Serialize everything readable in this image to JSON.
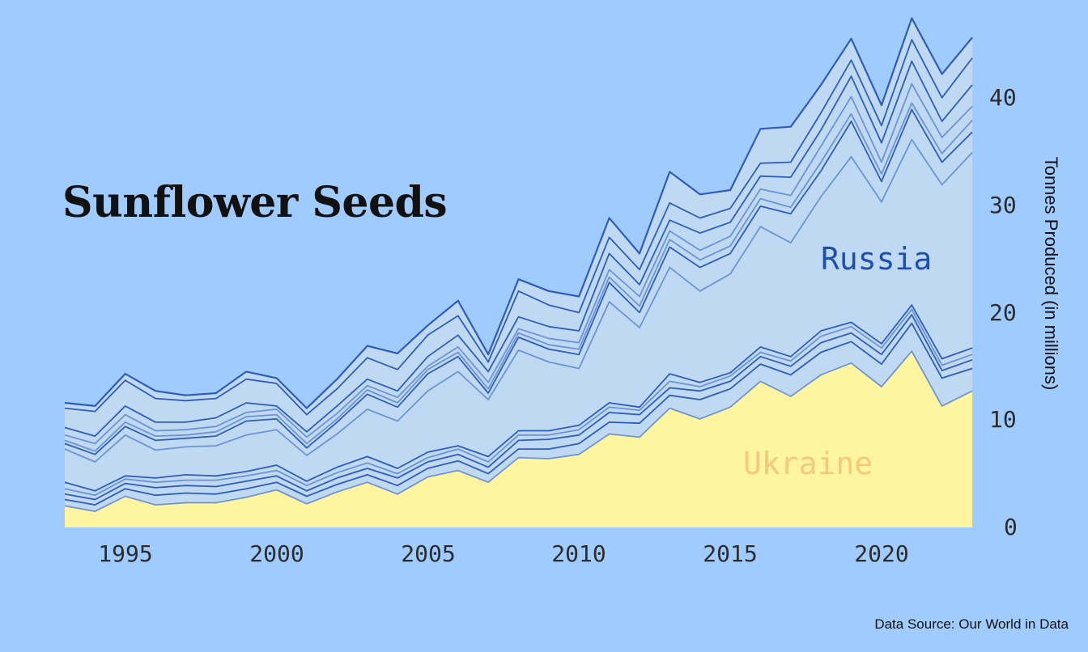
{
  "title": "Sunflower Seeds",
  "labels": {
    "russia": "Russia",
    "ukraine": "Ukraine"
  },
  "y_axis_title": "Tonnes Produced (in millions)",
  "source": "Data Source: Our World in Data",
  "colors": {
    "background": "#a0cbff",
    "russia_fill": "#c0d9f2",
    "ukraine_fill": "#fff5a0",
    "line_dark": "#1f4fb5",
    "line_light": "#5d86cf",
    "russia_label": "#1d4fb0",
    "ukraine_label": "#f5c97a"
  },
  "x_ticks": [
    "1995",
    "2000",
    "2005",
    "2010",
    "2015",
    "2020"
  ],
  "y_ticks": [
    "0",
    "10",
    "20",
    "30",
    "40"
  ],
  "chart_data": {
    "type": "area",
    "stacked": true,
    "title": "Sunflower Seeds",
    "xlabel": "",
    "ylabel": "Tonnes Produced (in millions)",
    "ylim": [
      0,
      48
    ],
    "xlim": [
      1993,
      2023
    ],
    "grid": false,
    "legend": "inline labels (Ukraine, Russia)",
    "x": [
      1993,
      1994,
      1995,
      1996,
      1997,
      1998,
      1999,
      2000,
      2001,
      2002,
      2003,
      2004,
      2005,
      2006,
      2007,
      2008,
      2009,
      2010,
      2011,
      2012,
      2013,
      2014,
      2015,
      2016,
      2017,
      2018,
      2019,
      2020,
      2021,
      2022,
      2023
    ],
    "cumulative_boundaries": [
      {
        "name": "Ukraine",
        "values": [
          2.0,
          1.5,
          2.9,
          2.1,
          2.3,
          2.3,
          2.8,
          3.5,
          2.2,
          3.3,
          4.2,
          3.1,
          4.7,
          5.3,
          4.2,
          6.5,
          6.4,
          6.8,
          8.7,
          8.4,
          11.1,
          10.1,
          11.2,
          13.6,
          12.2,
          14.2,
          15.3,
          13.1,
          16.4,
          11.3,
          12.7
        ]
      },
      {
        "name": "layer 2",
        "values": [
          2.6,
          2.1,
          3.6,
          3.0,
          3.2,
          3.1,
          3.6,
          4.2,
          2.9,
          4.0,
          4.9,
          3.9,
          5.5,
          6.2,
          5.0,
          7.3,
          7.3,
          7.8,
          9.8,
          9.7,
          12.3,
          11.9,
          12.9,
          15.2,
          14.2,
          16.3,
          17.3,
          15.2,
          19.0,
          13.9,
          14.8
        ]
      },
      {
        "name": "layer 3",
        "values": [
          3.1,
          2.6,
          4.1,
          3.7,
          3.9,
          3.8,
          4.3,
          4.8,
          3.4,
          4.6,
          5.5,
          4.6,
          6.1,
          6.8,
          5.6,
          8.1,
          8.2,
          8.6,
          10.7,
          10.5,
          13.0,
          12.7,
          13.6,
          15.9,
          15.0,
          17.2,
          18.1,
          16.1,
          19.8,
          14.6,
          15.6
        ]
      },
      {
        "name": "layer 4",
        "values": [
          3.6,
          3.0,
          4.5,
          4.2,
          4.4,
          4.4,
          4.8,
          5.3,
          3.9,
          5.1,
          6.0,
          5.0,
          6.5,
          7.3,
          6.1,
          8.6,
          8.6,
          9.1,
          11.2,
          10.9,
          13.6,
          13.1,
          14.1,
          16.3,
          15.5,
          17.8,
          18.7,
          16.7,
          20.3,
          15.1,
          16.1
        ]
      },
      {
        "name": "layer 5",
        "values": [
          4.2,
          3.4,
          4.8,
          4.6,
          4.9,
          4.8,
          5.2,
          5.8,
          4.3,
          5.6,
          6.6,
          5.5,
          7.0,
          7.6,
          6.6,
          9.0,
          9.0,
          9.5,
          11.6,
          11.2,
          14.3,
          13.5,
          14.4,
          16.8,
          15.9,
          18.3,
          19.1,
          17.1,
          20.7,
          15.7,
          16.7
        ]
      },
      {
        "name": "Russia",
        "values": [
          7.3,
          6.1,
          8.6,
          7.2,
          7.5,
          7.6,
          8.6,
          9.1,
          6.7,
          8.7,
          11.0,
          9.9,
          12.7,
          14.5,
          11.9,
          16.5,
          15.4,
          14.8,
          21.0,
          18.6,
          24.2,
          22.0,
          23.6,
          28.0,
          26.5,
          30.8,
          34.5,
          30.3,
          36.1,
          31.9,
          34.9
        ]
      },
      {
        "name": "layer 7",
        "values": [
          7.8,
          6.8,
          9.4,
          8.1,
          8.3,
          8.5,
          9.9,
          10.1,
          7.4,
          9.8,
          12.4,
          11.2,
          14.3,
          15.9,
          12.5,
          17.7,
          16.6,
          16.1,
          22.8,
          20.0,
          26.1,
          24.2,
          25.5,
          29.9,
          29.2,
          33.2,
          37.8,
          32.2,
          38.9,
          34.0,
          36.8
        ]
      },
      {
        "name": "layer 8",
        "values": [
          8.1,
          7.1,
          9.8,
          8.5,
          8.6,
          8.9,
          10.3,
          10.5,
          7.8,
          10.1,
          12.8,
          11.6,
          14.7,
          16.3,
          12.9,
          18.1,
          17.0,
          16.6,
          23.3,
          20.6,
          26.8,
          24.9,
          26.2,
          30.6,
          29.8,
          34.0,
          38.5,
          32.9,
          39.5,
          34.8,
          37.9
        ]
      },
      {
        "name": "layer 9",
        "values": [
          8.6,
          7.8,
          10.5,
          9.0,
          9.1,
          9.4,
          10.7,
          11.0,
          8.4,
          10.6,
          13.2,
          12.1,
          15.0,
          16.8,
          13.5,
          18.5,
          17.6,
          17.2,
          24.0,
          21.5,
          27.6,
          25.8,
          27.1,
          31.5,
          30.9,
          35.5,
          40.1,
          34.0,
          41.3,
          36.3,
          39.2
        ]
      },
      {
        "name": "layer 10",
        "values": [
          9.3,
          8.5,
          11.3,
          9.8,
          9.8,
          10.2,
          11.6,
          11.3,
          8.9,
          11.3,
          13.8,
          12.7,
          15.9,
          17.9,
          14.5,
          19.6,
          18.7,
          18.3,
          25.5,
          22.6,
          28.6,
          27.4,
          28.4,
          32.7,
          32.6,
          37.0,
          42.0,
          35.8,
          43.4,
          37.8,
          41.2
        ]
      },
      {
        "name": "layer 11",
        "values": [
          11.1,
          10.8,
          13.7,
          12.0,
          11.8,
          12.0,
          13.8,
          13.4,
          10.5,
          12.9,
          15.8,
          14.7,
          17.9,
          19.7,
          15.4,
          22.0,
          20.7,
          20.0,
          27.0,
          24.0,
          30.2,
          28.8,
          29.7,
          33.9,
          34.0,
          38.6,
          43.5,
          37.4,
          45.4,
          40.0,
          43.7
        ]
      },
      {
        "name": "Total",
        "values": [
          11.6,
          11.3,
          14.3,
          12.7,
          12.3,
          12.5,
          14.5,
          13.9,
          11.1,
          13.8,
          16.9,
          16.2,
          18.8,
          21.1,
          16.1,
          23.1,
          22.0,
          21.5,
          28.8,
          25.5,
          33.1,
          31.0,
          31.4,
          37.1,
          37.3,
          41.2,
          45.5,
          39.3,
          47.4,
          42.2,
          45.6
        ]
      }
    ]
  }
}
